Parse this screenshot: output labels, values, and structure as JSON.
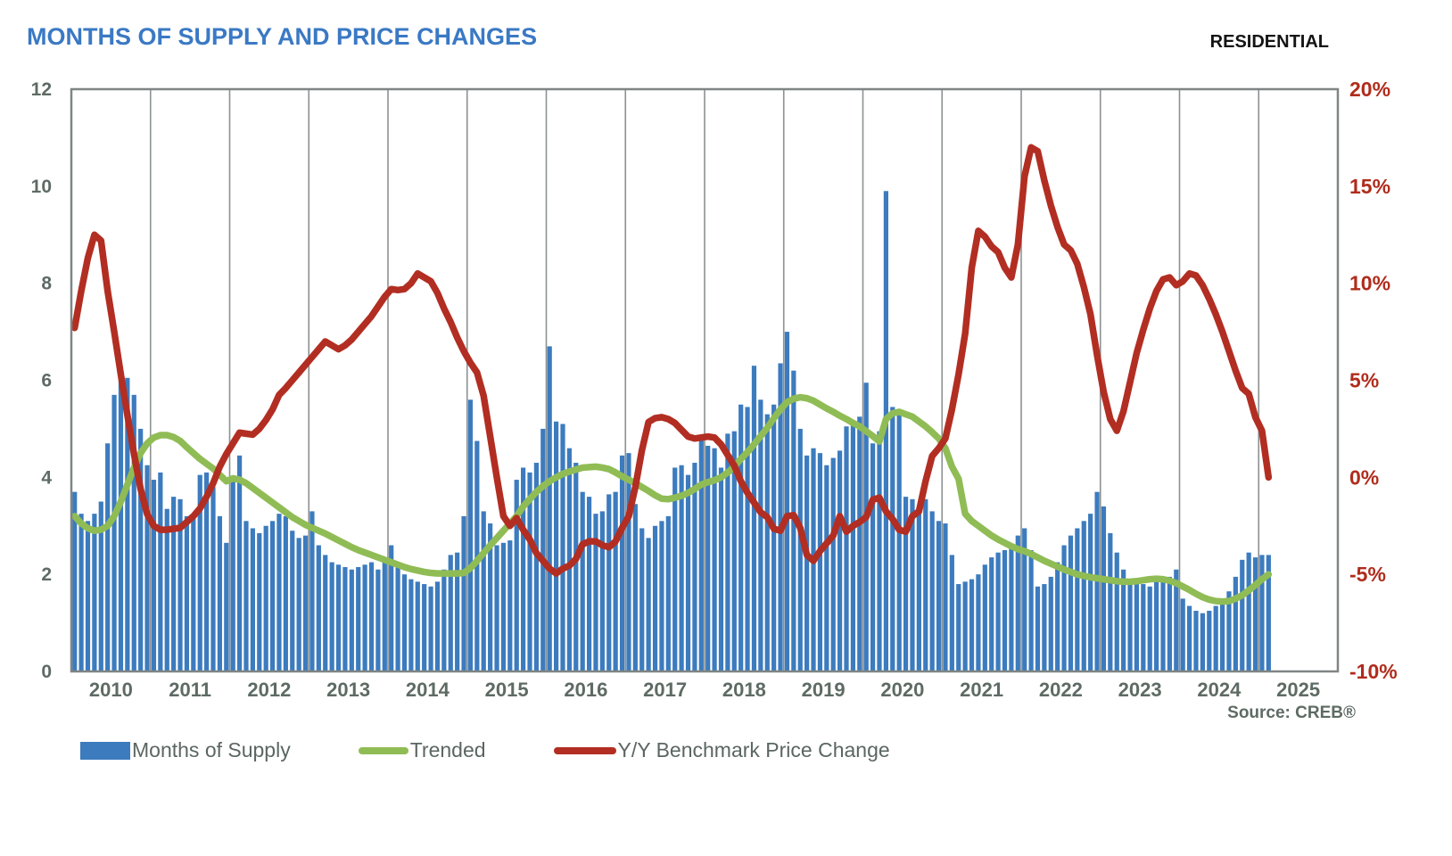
{
  "header": {
    "title": "MONTHS OF SUPPLY AND PRICE CHANGES",
    "tag": "RESIDENTIAL"
  },
  "source_label": "Source: CREB®",
  "chart_data": {
    "type": "bar",
    "combo": true,
    "title": "MONTHS OF SUPPLY AND PRICE CHANGES",
    "x": {
      "start": "2010-01",
      "end": "2025-02",
      "months_per_label": 12,
      "tick_labels": [
        "2010",
        "2011",
        "2012",
        "2013",
        "2014",
        "2015",
        "2016",
        "2017",
        "2018",
        "2019",
        "2020",
        "2021",
        "2022",
        "2023",
        "2024",
        "2025"
      ],
      "total_slots": 192
    },
    "left_axis": {
      "label": "Months of Supply",
      "min": 0,
      "max": 12,
      "step": 2,
      "ticks": [
        "0",
        "2",
        "4",
        "6",
        "8",
        "10",
        "12"
      ]
    },
    "right_axis": {
      "label": "Y/Y Benchmark Price Change",
      "min": -10,
      "max": 20,
      "step": 5,
      "ticks": [
        "-10%",
        "-5%",
        "0%",
        "5%",
        "10%",
        "15%",
        "20%"
      ]
    },
    "grid": {
      "vertical_year_lines": true,
      "horizontal_lines": false
    },
    "legend_position": "bottom",
    "series": [
      {
        "name": "Months of Supply",
        "type": "bar",
        "axis": "left",
        "color": "#3c7bbe",
        "values": [
          3.7,
          3.25,
          3.1,
          3.25,
          3.5,
          4.7,
          5.7,
          6.15,
          6.05,
          5.7,
          5.0,
          4.25,
          3.95,
          4.1,
          3.35,
          3.6,
          3.55,
          3.2,
          3.2,
          4.05,
          4.1,
          3.8,
          3.2,
          2.65,
          4.0,
          4.45,
          3.1,
          2.95,
          2.85,
          3.0,
          3.1,
          3.25,
          3.2,
          2.9,
          2.75,
          2.8,
          3.3,
          2.6,
          2.4,
          2.25,
          2.2,
          2.15,
          2.1,
          2.15,
          2.2,
          2.25,
          2.1,
          2.3,
          2.6,
          2.2,
          2.0,
          1.9,
          1.85,
          1.8,
          1.75,
          1.85,
          2.1,
          2.4,
          2.45,
          3.2,
          5.6,
          4.75,
          3.3,
          3.05,
          2.6,
          2.65,
          2.7,
          3.95,
          4.2,
          4.1,
          4.3,
          5.0,
          6.7,
          5.15,
          5.1,
          4.6,
          4.3,
          3.7,
          3.6,
          3.25,
          3.3,
          3.65,
          3.7,
          4.45,
          4.5,
          3.45,
          2.95,
          2.75,
          3.0,
          3.1,
          3.2,
          4.2,
          4.25,
          4.05,
          4.3,
          4.85,
          4.65,
          4.6,
          4.2,
          4.9,
          4.95,
          5.5,
          5.45,
          6.3,
          5.6,
          5.3,
          5.5,
          6.35,
          7.0,
          6.2,
          5.0,
          4.45,
          4.6,
          4.5,
          4.25,
          4.4,
          4.55,
          5.05,
          5.15,
          5.25,
          5.95,
          4.7,
          4.95,
          9.9,
          5.45,
          5.35,
          3.6,
          3.55,
          3.3,
          3.55,
          3.3,
          3.1,
          3.05,
          2.4,
          1.8,
          1.85,
          1.9,
          2.0,
          2.2,
          2.35,
          2.45,
          2.5,
          2.55,
          2.8,
          2.95,
          2.5,
          1.75,
          1.8,
          1.95,
          2.25,
          2.6,
          2.8,
          2.95,
          3.1,
          3.25,
          3.7,
          3.4,
          2.85,
          2.45,
          2.1,
          1.9,
          1.85,
          1.8,
          1.75,
          1.85,
          1.9,
          1.95,
          2.1,
          1.5,
          1.35,
          1.25,
          1.2,
          1.25,
          1.35,
          1.5,
          1.65,
          1.95,
          2.3,
          2.45,
          2.35,
          2.4,
          2.4
        ]
      },
      {
        "name": "Trended",
        "type": "line",
        "axis": "left",
        "color": "#90bc55",
        "values": [
          3.2,
          3.05,
          2.95,
          2.9,
          2.92,
          3.0,
          3.2,
          3.5,
          3.85,
          4.2,
          4.5,
          4.7,
          4.82,
          4.87,
          4.87,
          4.83,
          4.75,
          4.62,
          4.5,
          4.38,
          4.28,
          4.18,
          4.05,
          3.92,
          3.98,
          3.95,
          3.88,
          3.78,
          3.68,
          3.58,
          3.48,
          3.38,
          3.28,
          3.18,
          3.1,
          3.02,
          2.96,
          2.9,
          2.84,
          2.77,
          2.7,
          2.63,
          2.56,
          2.5,
          2.45,
          2.4,
          2.35,
          2.3,
          2.25,
          2.2,
          2.15,
          2.11,
          2.08,
          2.05,
          2.03,
          2.02,
          2.02,
          2.02,
          2.02,
          2.03,
          2.13,
          2.28,
          2.44,
          2.6,
          2.75,
          2.9,
          3.05,
          3.2,
          3.4,
          3.55,
          3.7,
          3.82,
          3.92,
          4.0,
          4.07,
          4.12,
          4.16,
          4.2,
          4.21,
          4.22,
          4.2,
          4.17,
          4.1,
          4.02,
          3.95,
          3.88,
          3.8,
          3.72,
          3.63,
          3.56,
          3.55,
          3.58,
          3.62,
          3.68,
          3.76,
          3.85,
          3.9,
          3.94,
          4.0,
          4.1,
          4.22,
          4.38,
          4.52,
          4.68,
          4.85,
          5.02,
          5.22,
          5.4,
          5.55,
          5.62,
          5.65,
          5.63,
          5.58,
          5.5,
          5.42,
          5.35,
          5.27,
          5.2,
          5.12,
          5.05,
          4.95,
          4.85,
          4.74,
          5.2,
          5.32,
          5.35,
          5.3,
          5.25,
          5.15,
          5.05,
          4.93,
          4.8,
          4.6,
          4.22,
          3.97,
          3.25,
          3.1,
          3.0,
          2.9,
          2.8,
          2.72,
          2.65,
          2.58,
          2.52,
          2.48,
          2.42,
          2.35,
          2.28,
          2.22,
          2.16,
          2.1,
          2.05,
          2.0,
          1.97,
          1.94,
          1.92,
          1.9,
          1.88,
          1.86,
          1.85,
          1.85,
          1.86,
          1.88,
          1.9,
          1.91,
          1.9,
          1.87,
          1.82,
          1.75,
          1.68,
          1.6,
          1.53,
          1.48,
          1.45,
          1.44,
          1.45,
          1.5,
          1.57,
          1.67,
          1.78,
          1.9,
          2.0
        ]
      },
      {
        "name": "Y/Y Benchmark Price Change",
        "type": "line",
        "axis": "right",
        "color": "#b22e22",
        "values": [
          7.7,
          9.6,
          11.3,
          12.5,
          12.2,
          9.6,
          7.5,
          5.3,
          3.2,
          1.2,
          -0.6,
          -1.9,
          -2.5,
          -2.7,
          -2.7,
          -2.65,
          -2.6,
          -2.3,
          -2.0,
          -1.6,
          -1.0,
          -0.3,
          0.55,
          1.2,
          1.75,
          2.3,
          2.25,
          2.2,
          2.5,
          2.95,
          3.5,
          4.25,
          4.6,
          5.0,
          5.4,
          5.8,
          6.2,
          6.6,
          7.0,
          6.8,
          6.6,
          6.8,
          7.1,
          7.5,
          7.9,
          8.3,
          8.8,
          9.3,
          9.7,
          9.65,
          9.7,
          10.0,
          10.5,
          10.3,
          10.1,
          9.5,
          8.7,
          8.0,
          7.2,
          6.5,
          5.9,
          5.4,
          4.2,
          2.1,
          0.0,
          -2.0,
          -2.5,
          -2.1,
          -2.7,
          -3.2,
          -3.9,
          -4.3,
          -4.7,
          -4.95,
          -4.7,
          -4.55,
          -4.2,
          -3.45,
          -3.3,
          -3.3,
          -3.5,
          -3.6,
          -3.3,
          -2.6,
          -2.0,
          -0.5,
          1.4,
          2.85,
          3.05,
          3.1,
          3.0,
          2.8,
          2.45,
          2.1,
          2.0,
          2.05,
          2.1,
          2.05,
          1.7,
          1.15,
          0.6,
          -0.2,
          -0.8,
          -1.3,
          -1.8,
          -2.05,
          -2.65,
          -2.75,
          -2.0,
          -1.95,
          -2.6,
          -4.0,
          -4.3,
          -3.8,
          -3.4,
          -3.0,
          -2.0,
          -2.8,
          -2.5,
          -2.3,
          -2.05,
          -1.15,
          -1.05,
          -1.75,
          -2.15,
          -2.7,
          -2.8,
          -2.0,
          -1.75,
          -0.2,
          1.1,
          1.5,
          2.0,
          3.5,
          5.3,
          7.4,
          10.8,
          12.7,
          12.4,
          11.9,
          11.6,
          10.8,
          10.3,
          12.0,
          15.5,
          17.0,
          16.8,
          15.3,
          14.0,
          12.9,
          12.0,
          11.7,
          11.0,
          9.8,
          8.4,
          6.3,
          4.4,
          3.0,
          2.4,
          3.4,
          4.9,
          6.4,
          7.6,
          8.7,
          9.6,
          10.2,
          10.3,
          9.9,
          10.1,
          10.5,
          10.4,
          9.9,
          9.2,
          8.4,
          7.5,
          6.5,
          5.5,
          4.6,
          4.3,
          3.1,
          2.4,
          0.0
        ]
      }
    ],
    "legend": [
      {
        "label": "Months of Supply",
        "swatch": "rect"
      },
      {
        "label": "Trended",
        "swatch": "line"
      },
      {
        "label": "Y/Y Benchmark Price Change",
        "swatch": "line"
      }
    ],
    "colors": {
      "title_blue": "#3a79c4",
      "axis_gray_green": "#5e6b64",
      "right_axis_red": "#b02c1c",
      "gridline_gray": "#8c9191",
      "border_gray": "#7f8584"
    }
  }
}
